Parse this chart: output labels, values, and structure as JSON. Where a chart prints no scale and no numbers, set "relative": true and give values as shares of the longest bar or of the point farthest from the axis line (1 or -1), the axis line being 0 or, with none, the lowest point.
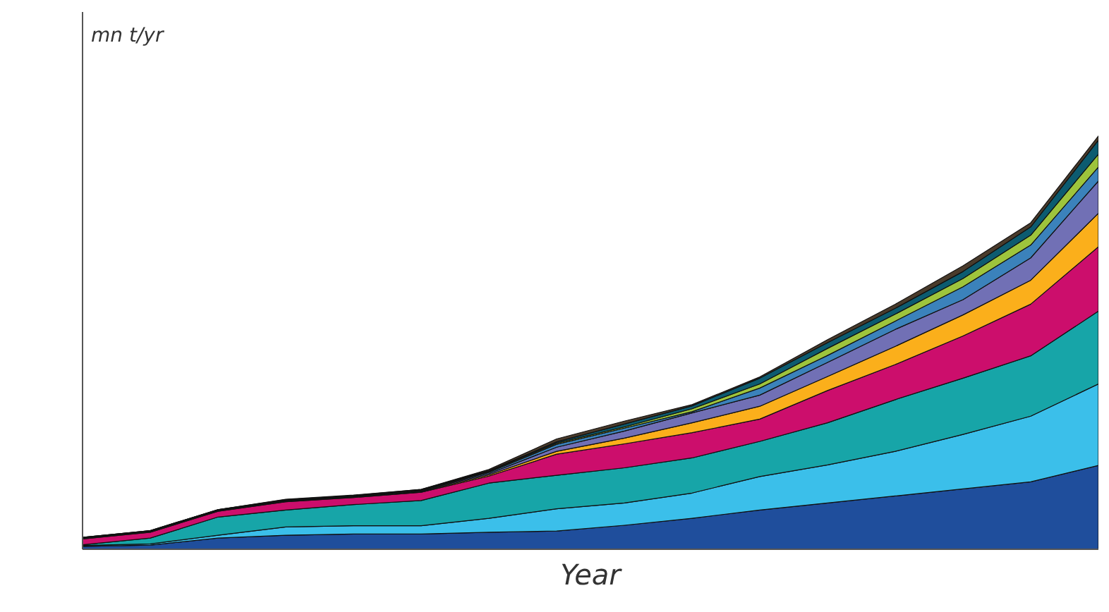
{
  "chart_data": {
    "type": "area",
    "stacked": true,
    "relative": true,
    "xlabel": "Year",
    "ylabel": "mn t/yr",
    "categories": [
      null,
      null,
      null,
      null,
      null,
      null,
      null,
      null,
      null,
      null,
      null,
      null,
      null,
      null,
      null,
      null
    ],
    "series": [
      {
        "color": "#1f4e9c",
        "values": [
          0.007,
          0.01,
          0.027,
          0.034,
          0.037,
          0.037,
          0.041,
          0.044,
          0.058,
          0.075,
          0.095,
          0.112,
          0.129,
          0.146,
          0.163,
          0.203
        ]
      },
      {
        "color": "#3bbfea",
        "values": [
          0.002,
          0.003,
          0.007,
          0.02,
          0.02,
          0.02,
          0.034,
          0.054,
          0.054,
          0.061,
          0.081,
          0.092,
          0.108,
          0.132,
          0.159,
          0.197
        ]
      },
      {
        "color": "#17a5a8",
        "values": [
          0.002,
          0.014,
          0.044,
          0.041,
          0.051,
          0.061,
          0.085,
          0.081,
          0.085,
          0.085,
          0.085,
          0.102,
          0.125,
          0.136,
          0.146,
          0.176
        ]
      },
      {
        "color": "#cc0e6c",
        "values": [
          0.014,
          0.014,
          0.014,
          0.02,
          0.017,
          0.02,
          0.017,
          0.051,
          0.058,
          0.061,
          0.054,
          0.078,
          0.085,
          0.102,
          0.125,
          0.156
        ]
      },
      {
        "color": "#fbaf1b",
        "values": [
          0.001,
          0.001,
          0.001,
          0.001,
          0.001,
          0.002,
          0.003,
          0.007,
          0.014,
          0.024,
          0.031,
          0.034,
          0.044,
          0.051,
          0.058,
          0.081
        ]
      },
      {
        "color": "#7170b5",
        "values": [
          0.001,
          0.001,
          0.001,
          0.001,
          0.001,
          0.002,
          0.003,
          0.01,
          0.017,
          0.024,
          0.027,
          0.034,
          0.041,
          0.037,
          0.054,
          0.078
        ]
      },
      {
        "color": "#3b82bb",
        "values": [
          0.001,
          0.001,
          0.001,
          0.001,
          0.001,
          0.001,
          0.003,
          0.007,
          0.007,
          0.003,
          0.017,
          0.017,
          0.02,
          0.031,
          0.031,
          0.034
        ]
      },
      {
        "color": "#9ec43c",
        "values": [
          0.001,
          0.001,
          0.001,
          0.001,
          0.001,
          0.001,
          0.002,
          0.003,
          0.003,
          0.007,
          0.01,
          0.017,
          0.017,
          0.02,
          0.024,
          0.031
        ]
      },
      {
        "color": "#0c5b70",
        "values": [
          0,
          0,
          0,
          0.001,
          0.001,
          0.001,
          0.002,
          0.003,
          0.007,
          0.007,
          0.014,
          0.014,
          0.014,
          0.017,
          0.02,
          0.034
        ]
      },
      {
        "color": "#4a3b2b",
        "values": [
          0,
          0,
          0,
          0.001,
          0.001,
          0,
          0.003,
          0.007,
          0.007,
          0.003,
          0.003,
          0.007,
          0.01,
          0.014,
          0.01,
          0.01
        ]
      }
    ]
  }
}
